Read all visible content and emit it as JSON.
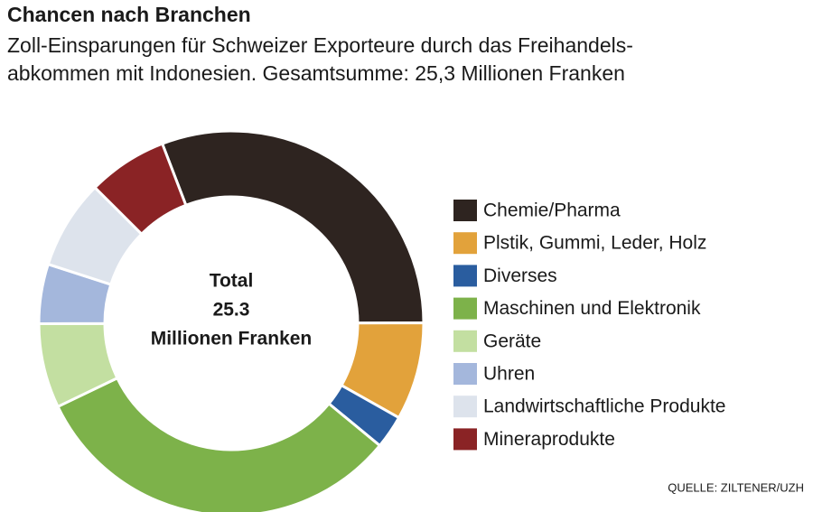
{
  "chart_data": {
    "type": "donut",
    "title": "Chancen nach Branchen",
    "subtitle": [
      "Zoll-Einsparungen für Schweizer Exporteure durch das Freihandels-",
      "abkommen mit Indonesien. Gesamtsumme: 25,3 Millionen Franken"
    ],
    "center_label": [
      "Total",
      "25.3",
      "Millionen Franken"
    ],
    "categories": [
      "Chemie/Pharma",
      "Plstik, Gummi, Leder, Holz",
      "Diverses",
      "Maschinen und Elektronik",
      "Geräte",
      "Uhren",
      "Landwirtschaftliche Produkte",
      "Mineraprodukte"
    ],
    "values": [
      30.8,
      8.2,
      2.8,
      31.9,
      7.1,
      5.0,
      7.5,
      6.7
    ],
    "colors": [
      "#2e2420",
      "#e2a23b",
      "#2a5d9f",
      "#7db24a",
      "#c3dfa1",
      "#a4b7dc",
      "#dde3ec",
      "#8a2325"
    ],
    "source": "QUELLE:  ZILTENER/UZH"
  }
}
